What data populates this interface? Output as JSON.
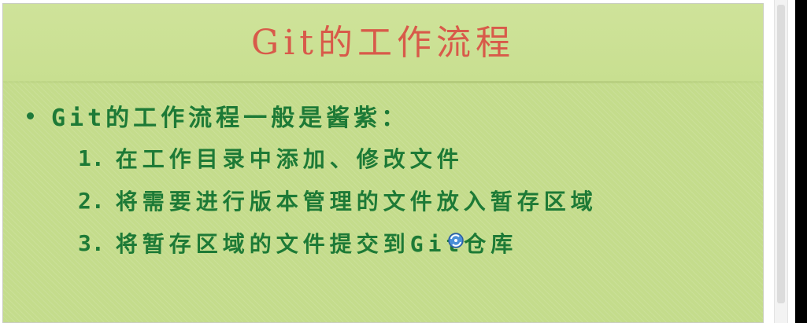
{
  "slide": {
    "title": "Git的工作流程",
    "bullet": "Git的工作流程一般是酱紫：",
    "steps": [
      {
        "num": "1.",
        "text": "在工作目录中添加、修改文件"
      },
      {
        "num": "2.",
        "text": "将需要进行版本管理的文件放入暂存区域"
      },
      {
        "num": "3.",
        "text": "将暂存区域的文件提交到Git仓库"
      }
    ]
  },
  "colors": {
    "slide_background": "#c4dc8c",
    "title_color": "#d85a4a",
    "body_text_color": "#1d7a36"
  },
  "icons": {
    "cursor": "busy-cursor-icon"
  }
}
